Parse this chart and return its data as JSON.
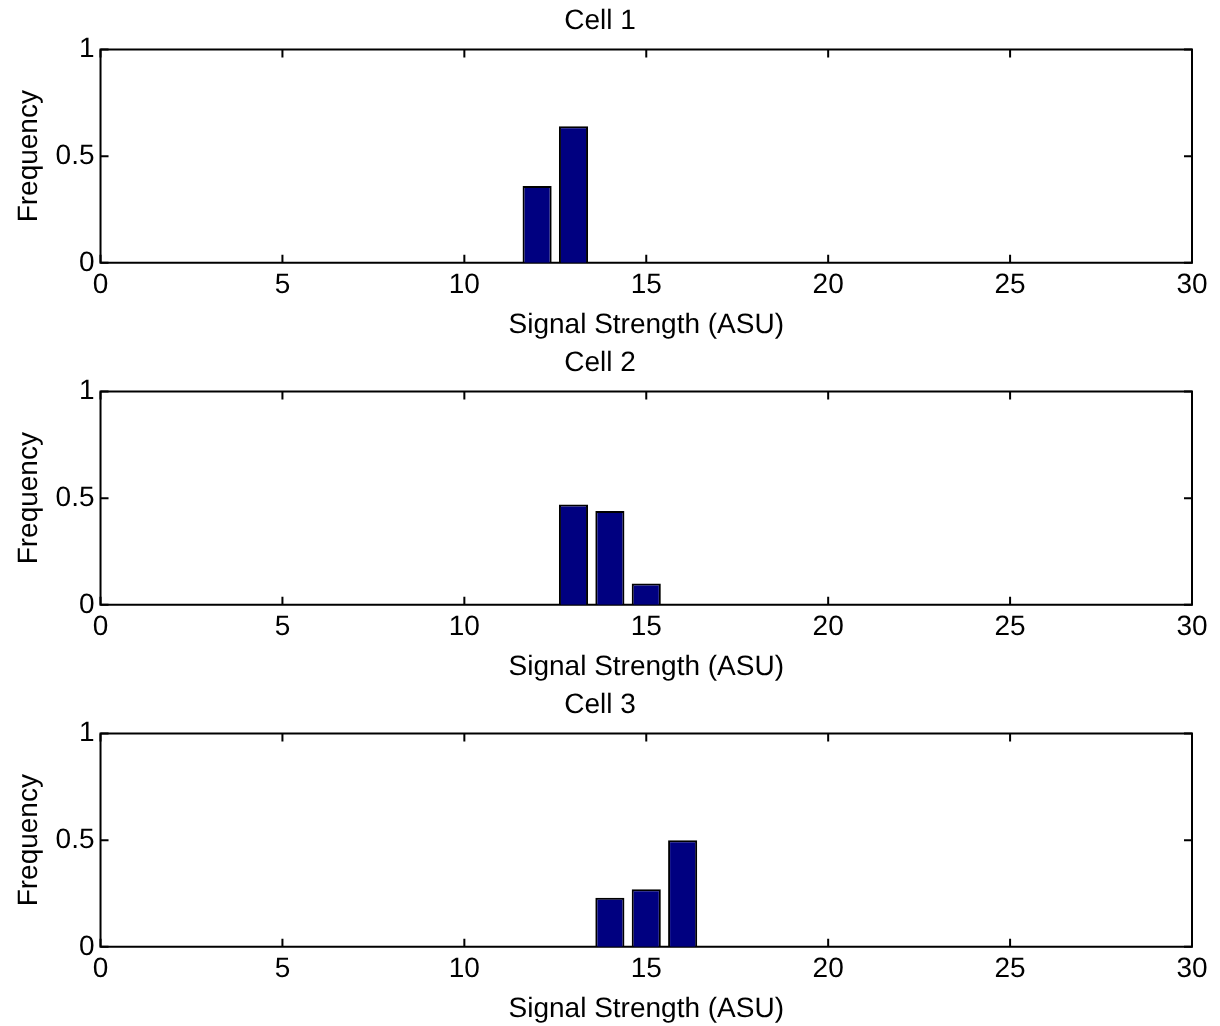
{
  "chart_data": [
    {
      "type": "bar",
      "title": "Cell 1",
      "xlabel": "Signal Strength (ASU)",
      "ylabel": "Frequency",
      "x": [
        12,
        13
      ],
      "values": [
        0.36,
        0.64
      ],
      "color": "#000080",
      "xlim": [
        0,
        30
      ],
      "xticks": [
        0,
        5,
        10,
        15,
        20,
        25,
        30
      ],
      "ylim": [
        0,
        1
      ],
      "yticks": [
        0,
        0.5,
        1
      ]
    },
    {
      "type": "bar",
      "title": "Cell 2",
      "xlabel": "Signal Strength (ASU)",
      "ylabel": "Frequency",
      "x": [
        13,
        14,
        15
      ],
      "values": [
        0.47,
        0.44,
        0.1
      ],
      "color": "#000080",
      "xlim": [
        0,
        30
      ],
      "xticks": [
        0,
        5,
        10,
        15,
        20,
        25,
        30
      ],
      "ylim": [
        0,
        1
      ],
      "yticks": [
        0,
        0.5,
        1
      ]
    },
    {
      "type": "bar",
      "title": "Cell 3",
      "xlabel": "Signal Strength (ASU)",
      "ylabel": "Frequency",
      "x": [
        14,
        15,
        16
      ],
      "values": [
        0.23,
        0.27,
        0.5
      ],
      "color": "#000080",
      "xlim": [
        0,
        30
      ],
      "xticks": [
        0,
        5,
        10,
        15,
        20,
        25,
        30
      ],
      "ylim": [
        0,
        1
      ],
      "yticks": [
        0,
        0.5,
        1
      ]
    }
  ]
}
